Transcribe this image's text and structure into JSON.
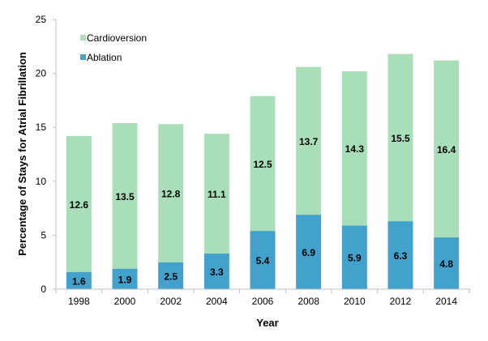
{
  "chart_data": {
    "type": "bar",
    "stacked": true,
    "categories": [
      "1998",
      "2000",
      "2002",
      "2004",
      "2006",
      "2008",
      "2010",
      "2012",
      "2014"
    ],
    "series": [
      {
        "name": "Ablation",
        "color": "#43a2cc",
        "values": [
          1.6,
          1.9,
          2.5,
          3.3,
          5.4,
          6.9,
          5.9,
          6.3,
          4.8
        ]
      },
      {
        "name": "Cardioversion",
        "color": "#a9dfb8",
        "values": [
          12.6,
          13.5,
          12.8,
          11.1,
          12.5,
          13.7,
          14.3,
          15.5,
          16.4
        ]
      }
    ],
    "xlabel": "Year",
    "ylabel": "Percentage of Stays for Atrial Fibrillation",
    "ylim": [
      0,
      25
    ],
    "yticks": [
      "0",
      "5",
      "10",
      "15",
      "20",
      "25"
    ],
    "grid": false,
    "legend": "top-left",
    "legend_order": [
      "Cardioversion",
      "Ablation"
    ]
  }
}
